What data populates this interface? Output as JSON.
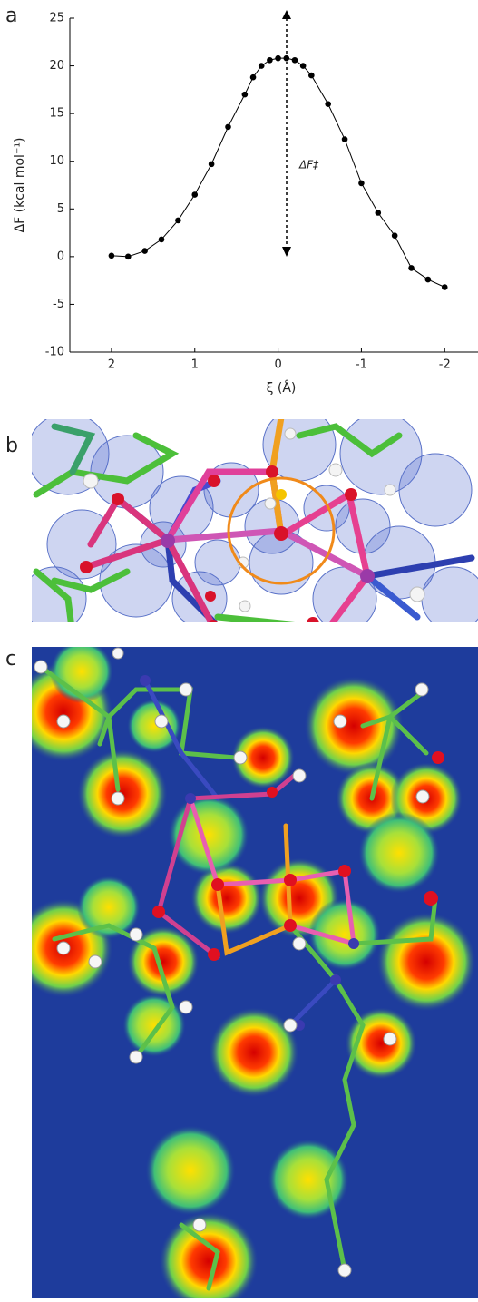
{
  "panel_labels": [
    "a",
    "b",
    "c"
  ],
  "chart_data": {
    "type": "line",
    "x": [
      2,
      1.8,
      1.6,
      1.4,
      1.2,
      1,
      0.8,
      0.6,
      0.4,
      0.3,
      0.2,
      0.1,
      0,
      -0.1,
      -0.2,
      -0.3,
      -0.4,
      -0.6,
      -0.8,
      -1,
      -1.2,
      -1.4,
      -1.6,
      -1.8,
      -2
    ],
    "values": [
      0.1,
      0,
      0.6,
      1.8,
      3.8,
      6.5,
      9.7,
      13.6,
      17,
      18.8,
      20,
      20.6,
      20.8,
      20.8,
      20.6,
      20,
      19,
      16,
      12.3,
      7.7,
      4.6,
      2.2,
      -1.2,
      -2.4,
      -3.2
    ],
    "color": "#000000",
    "xlabel": "ξ (Å)",
    "ylabel": "ΔF (kcal mol⁻¹)",
    "annotation": "ΔF‡",
    "xlim": [
      2.5,
      -2.4
    ],
    "xticks": [
      2,
      1,
      0,
      -1,
      -2
    ],
    "ylim": [
      -10,
      25
    ],
    "yticks": [
      -10,
      -5,
      0,
      5,
      10,
      15,
      20,
      25
    ]
  }
}
